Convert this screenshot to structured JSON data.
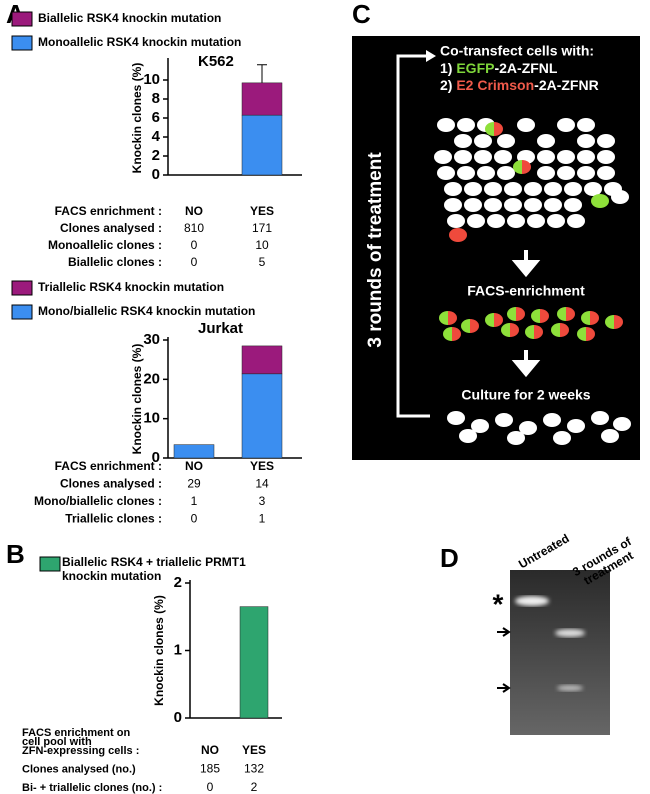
{
  "panel_labels": [
    "A",
    "B",
    "C",
    "D"
  ],
  "chart_data": [
    {
      "type": "bar",
      "stacked": true,
      "title": "K562",
      "y_label": "Knockin clones (%)",
      "categories": [
        "NO",
        "YES"
      ],
      "series": [
        {
          "name": "Monoallelic RSK4 knockin mutation",
          "color": "#3b8ef0",
          "values": [
            0,
            6.3
          ],
          "errors": [
            null,
            1.5
          ]
        },
        {
          "name": "Biallelic RSK4 knockin mutation",
          "color": "#9b1a7c",
          "values": [
            0,
            3.4
          ],
          "errors": [
            null,
            1.9
          ]
        }
      ],
      "ylim": [
        0,
        12
      ],
      "yticks": [
        0,
        2,
        4,
        6,
        8,
        10
      ],
      "table": {
        "header": "FACS enrichment :",
        "rows": [
          {
            "label": "Clones analysed :",
            "values": [
              810,
              171
            ]
          },
          {
            "label": "Monoallelic clones :",
            "values": [
              0,
              10
            ]
          },
          {
            "label": "Biallelic clones :",
            "values": [
              0,
              5
            ]
          }
        ]
      }
    },
    {
      "type": "bar",
      "stacked": true,
      "title": "Jurkat",
      "y_label": "Knockin clones (%)",
      "categories": [
        "NO",
        "YES"
      ],
      "series": [
        {
          "name": "Mono/biallelic RSK4 knockin mutation",
          "color": "#3b8ef0",
          "values": [
            3.4,
            21.4
          ]
        },
        {
          "name": "Triallelic RSK4 knockin mutation",
          "color": "#9b1a7c",
          "values": [
            0,
            7.1
          ]
        }
      ],
      "ylim": [
        0,
        30
      ],
      "yticks": [
        0,
        10,
        20,
        30
      ],
      "table": {
        "header": "FACS enrichment :",
        "rows": [
          {
            "label": "Clones analysed :",
            "values": [
              29,
              14
            ]
          },
          {
            "label": "Mono/biallelic clones :",
            "values": [
              1,
              3
            ]
          },
          {
            "label": "Triallelic clones :",
            "values": [
              0,
              1
            ]
          }
        ]
      }
    },
    {
      "type": "bar",
      "stacked": true,
      "y_label": "Knockin clones (%)",
      "categories": [
        "NO",
        "YES"
      ],
      "series": [
        {
          "name": "Biallelic RSK4 + triallelic PRMT1 knockin mutation",
          "color": "#2ea56f",
          "values": [
            0,
            1.65
          ]
        }
      ],
      "ylim": [
        0,
        2
      ],
      "yticks": [
        0,
        1,
        2
      ],
      "table": {
        "header_lines": [
          "FACS enrichment on",
          "cell pool with",
          "ZFN-expressing cells :"
        ],
        "rows": [
          {
            "label": "Clones analysed (no.)",
            "values": [
              185,
              132
            ]
          },
          {
            "label": "Bi- + triallelic clones (no.) :",
            "values": [
              0,
              2
            ]
          }
        ]
      }
    }
  ],
  "diagram": {
    "side_label": "3 rounds of treatment",
    "intro": "Co-transfect cells with:",
    "construct_1": [
      "1) ",
      "EGFP",
      "-2A-ZFNL"
    ],
    "construct_2": [
      "2) ",
      "E2 Crimson",
      "-2A-ZFNR"
    ],
    "step_1": "FACS-enrichment",
    "step_2": "Culture for 2 weeks"
  },
  "gel": {
    "lanes": [
      "Untreated",
      "3 rounds of treatment"
    ],
    "marker": "*"
  }
}
